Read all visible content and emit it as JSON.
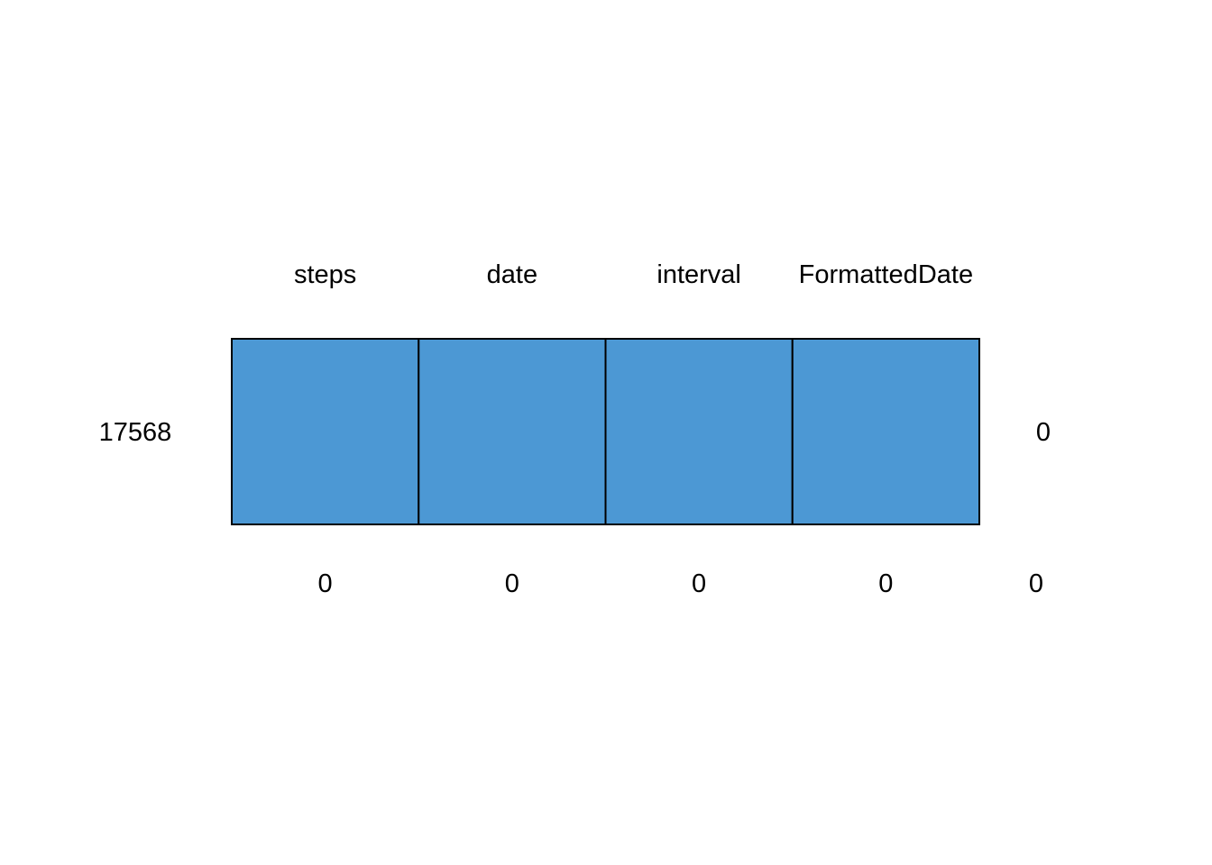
{
  "chart_data": {
    "type": "heatmap",
    "title": "",
    "columns": [
      "steps",
      "date",
      "interval",
      "FormattedDate"
    ],
    "rows": [
      {
        "row_label": "17568",
        "values": [
          1,
          1,
          1,
          1
        ],
        "row_missing_total": "0"
      }
    ],
    "column_missing_counts": [
      "0",
      "0",
      "0",
      "0"
    ],
    "total_missing": "0",
    "colors": {
      "observed": "#4c98d4",
      "missing": "#ffffff",
      "border": "#000000"
    }
  }
}
